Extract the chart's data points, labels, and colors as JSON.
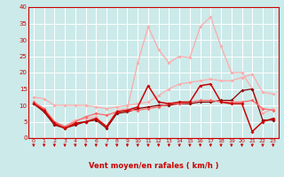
{
  "xlabel": "Vent moyen/en rafales ( km/h )",
  "bg_color": "#cceaea",
  "grid_color": "#ffffff",
  "text_color": "#cc0000",
  "xlim": [
    -0.5,
    23.5
  ],
  "ylim": [
    0,
    40
  ],
  "yticks": [
    0,
    5,
    10,
    15,
    20,
    25,
    30,
    35,
    40
  ],
  "xticks": [
    0,
    1,
    2,
    3,
    4,
    5,
    6,
    7,
    8,
    9,
    10,
    11,
    12,
    13,
    14,
    15,
    16,
    17,
    18,
    19,
    20,
    21,
    22,
    23
  ],
  "series": [
    {
      "y": [
        11.0,
        9.0,
        5.0,
        3.5,
        5.5,
        6.0,
        6.5,
        3.5,
        8.5,
        9.0,
        23.0,
        34.0,
        27.0,
        23.0,
        25.0,
        24.5,
        34.0,
        37.0,
        28.0,
        20.0,
        20.0,
        15.0,
        7.5,
        9.0
      ],
      "color": "#ffaaaa",
      "lw": 0.9,
      "zorder": 2
    },
    {
      "y": [
        12.5,
        12.0,
        10.0,
        10.0,
        10.0,
        10.0,
        9.5,
        9.0,
        9.5,
        10.0,
        10.5,
        11.0,
        13.0,
        15.0,
        16.5,
        17.0,
        17.5,
        18.0,
        17.5,
        17.5,
        18.5,
        19.5,
        14.0,
        13.5
      ],
      "color": "#ffaaaa",
      "lw": 0.9,
      "zorder": 3
    },
    {
      "y": [
        10.5,
        8.0,
        4.0,
        3.0,
        4.0,
        5.0,
        5.5,
        3.0,
        7.5,
        8.0,
        9.0,
        9.5,
        10.0,
        10.0,
        10.5,
        10.5,
        11.0,
        11.0,
        11.5,
        11.5,
        14.5,
        15.0,
        5.5,
        5.5
      ],
      "color": "#880000",
      "lw": 0.9,
      "zorder": 4
    },
    {
      "y": [
        11.0,
        9.0,
        5.0,
        3.5,
        5.0,
        6.5,
        7.5,
        7.0,
        8.0,
        8.5,
        8.5,
        9.0,
        9.5,
        10.5,
        10.5,
        11.0,
        11.5,
        11.5,
        11.0,
        11.0,
        11.0,
        11.5,
        9.0,
        8.5
      ],
      "color": "#ff6666",
      "lw": 0.9,
      "zorder": 4
    },
    {
      "y": [
        10.5,
        8.5,
        4.5,
        3.0,
        4.5,
        5.0,
        6.0,
        3.5,
        8.0,
        8.5,
        9.5,
        16.0,
        11.0,
        10.5,
        11.0,
        11.0,
        16.0,
        16.5,
        11.0,
        10.5,
        10.5,
        2.0,
        5.0,
        6.0
      ],
      "color": "#cc0000",
      "lw": 1.1,
      "zorder": 5
    }
  ]
}
